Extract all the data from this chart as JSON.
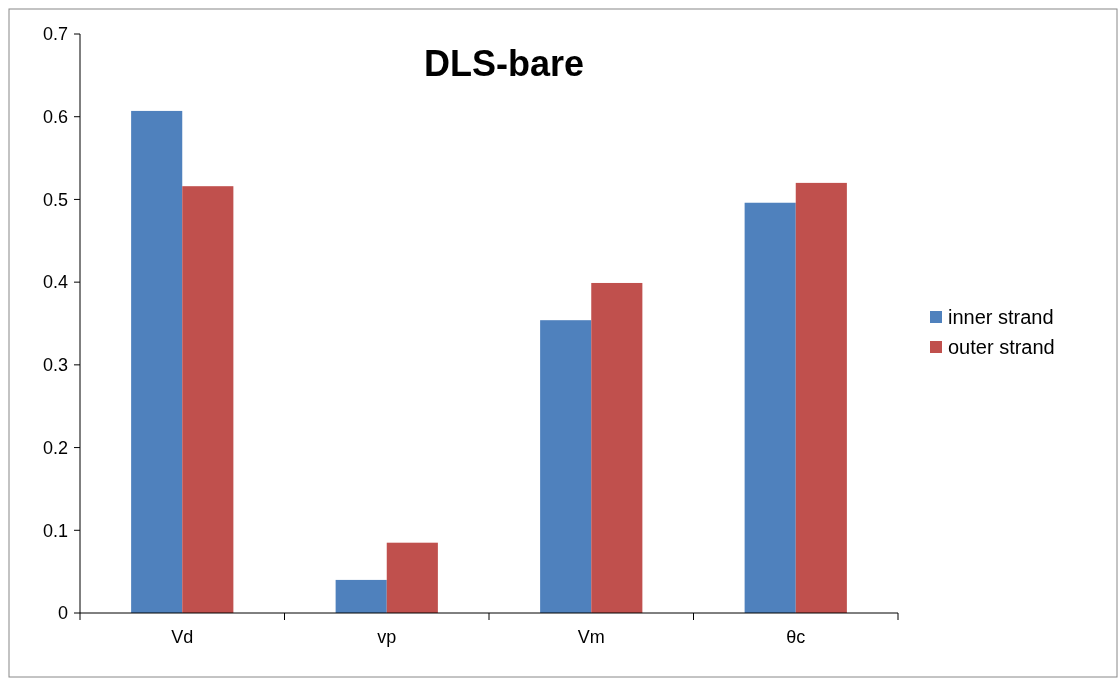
{
  "chart_data": {
    "type": "bar",
    "title": "DLS-bare",
    "categories": [
      "Vd",
      "vp",
      "Vm",
      "θc"
    ],
    "series": [
      {
        "name": "inner strand",
        "color": "#4f81bd",
        "values": [
          0.607,
          0.04,
          0.354,
          0.496
        ]
      },
      {
        "name": "outer strand",
        "color": "#c0504d",
        "values": [
          0.516,
          0.085,
          0.399,
          0.52
        ]
      }
    ],
    "ylim": [
      0,
      0.7
    ],
    "yticks": [
      0,
      0.1,
      0.2,
      0.3,
      0.4,
      0.5,
      0.6,
      0.7
    ],
    "grid": false,
    "legend": "right"
  }
}
